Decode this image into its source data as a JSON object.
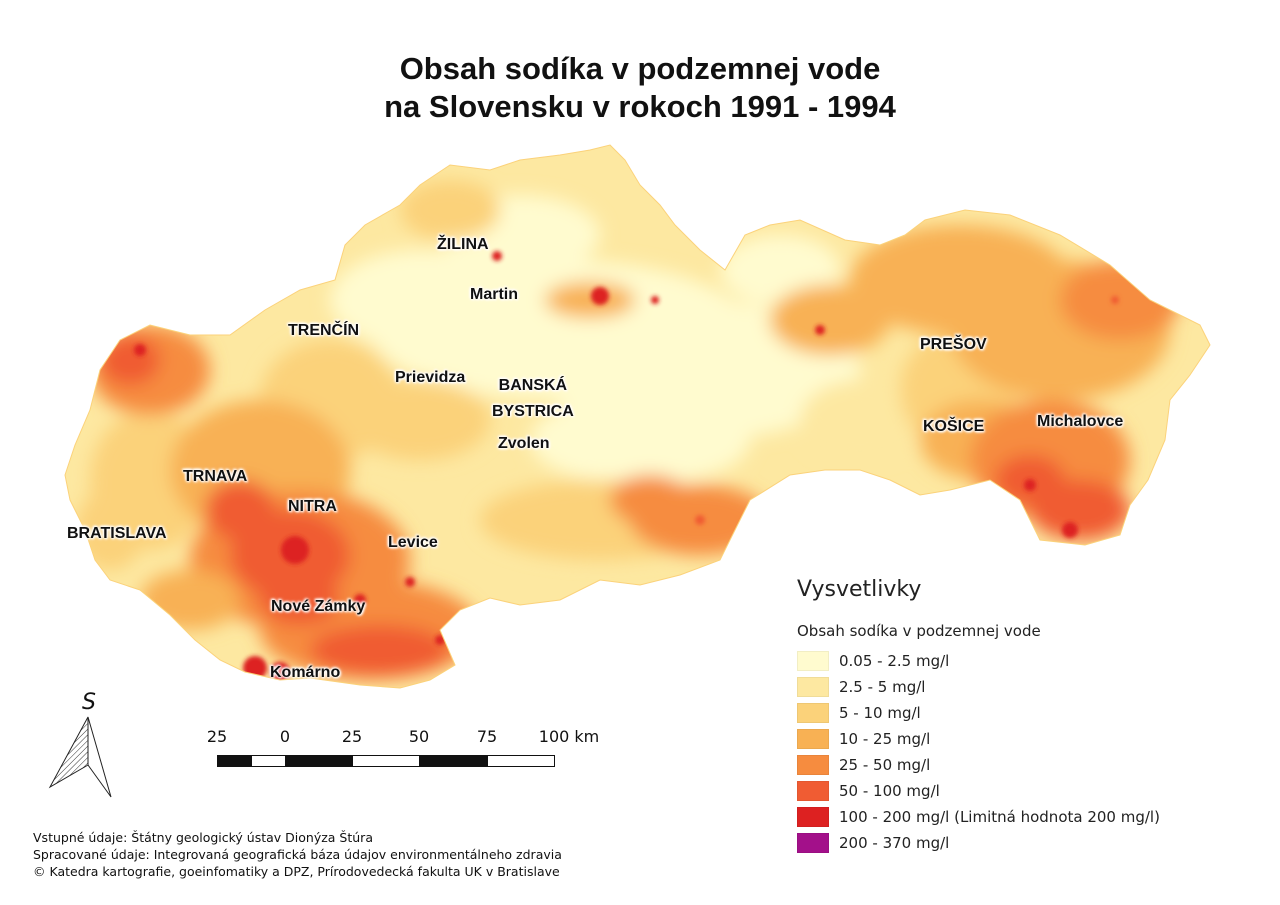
{
  "title": {
    "line1": "Obsah sodíka v podzemnej vode",
    "line2": "na Slovensku v rokoch 1991 - 1994"
  },
  "cities": {
    "zilina": "ŽILINA",
    "martin": "Martin",
    "trencin": "TRENČÍN",
    "prievidza": "Prievidza",
    "banska_bystrica_1": "BANSKÁ",
    "banska_bystrica_2": "BYSTRICA",
    "zvolen": "Zvolen",
    "presov": "PREŠOV",
    "kosice": "KOŠICE",
    "michalovce": "Michalovce",
    "trnava": "TRNAVA",
    "nitra": "NITRA",
    "bratislava": "BRATISLAVA",
    "levice": "Levice",
    "nove_zamky": "Nové Zámky",
    "komarno": "Komárno"
  },
  "legend": {
    "title": "Vysvetlivky",
    "subtitle": "Obsah sodíka v podzemnej vode",
    "classes": [
      {
        "label": "0.05 - 2.5 mg/l",
        "color": "#fffbcf"
      },
      {
        "label": "2.5 - 5 mg/l",
        "color": "#fde8a1"
      },
      {
        "label": "5 - 10 mg/l",
        "color": "#fbd27a"
      },
      {
        "label": "10 - 25 mg/l",
        "color": "#f8b154"
      },
      {
        "label": "25 - 50 mg/l",
        "color": "#f68c3f"
      },
      {
        "label": "50 - 100 mg/l",
        "color": "#f05c33"
      },
      {
        "label": "100 - 200 mg/l (Limitná hodnota 200 mg/l)",
        "color": "#dd2121"
      },
      {
        "label": "200 - 370 mg/l",
        "color": "#a3108a"
      }
    ]
  },
  "scale_bar": {
    "labels": [
      "25",
      "0",
      "25",
      "50",
      "75",
      "100 km"
    ]
  },
  "north_arrow": {
    "label": "S",
    "icon": "north-arrow-icon"
  },
  "credits": {
    "line1": "Vstupné údaje: Štátny geologický ústav Dionýza Štúra",
    "line2": "Spracované údaje: Integrovaná geografická báza údajov environmentálneho zdravia",
    "line3": "© Katedra kartografie, goeinfomatiky a DPZ, Prírodovedecká fakulta UK v Bratislave"
  }
}
